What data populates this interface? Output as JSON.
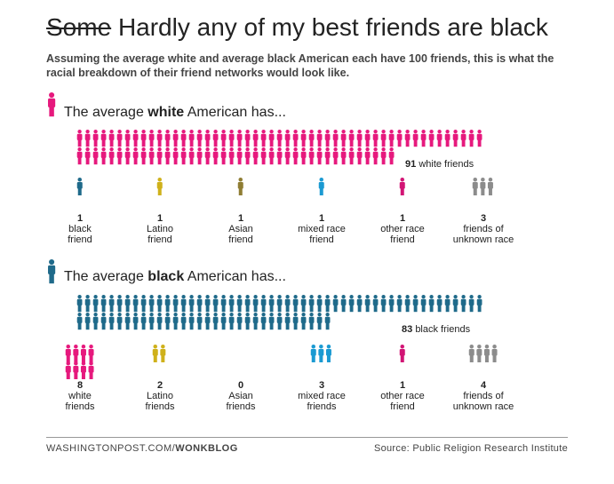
{
  "title": {
    "struck": "Some",
    "rest": "Hardly any of my best friends are black"
  },
  "subtitle": "Assuming the average white and average black American each have 100 friends, this is what the racial breakdown of their friend networks would look like.",
  "colors": {
    "white": "#e6197d",
    "black": "#1f6a8a",
    "latino": "#cfb11b",
    "asian": "#8f7d33",
    "mixed": "#1b9ad2",
    "other": "#d21575",
    "unknown": "#8c8c8c"
  },
  "chart_data": [
    {
      "type": "pictogram",
      "heading_pre": "The average",
      "heading_bold": "white",
      "heading_post": "American has...",
      "unit": "1 icon = 1 friend",
      "main": {
        "value": 91,
        "label": "white friends",
        "color_key": "white"
      },
      "groups": [
        {
          "value": 1,
          "line1": "black",
          "line2": "friend",
          "color_key": "black"
        },
        {
          "value": 1,
          "line1": "Latino",
          "line2": "friend",
          "color_key": "latino"
        },
        {
          "value": 1,
          "line1": "Asian",
          "line2": "friend",
          "color_key": "asian"
        },
        {
          "value": 1,
          "line1": "mixed race",
          "line2": "friend",
          "color_key": "mixed"
        },
        {
          "value": 1,
          "line1": "other race",
          "line2": "friend",
          "color_key": "other"
        },
        {
          "value": 3,
          "line1": "friends of",
          "line2": "unknown race",
          "color_key": "unknown"
        }
      ]
    },
    {
      "type": "pictogram",
      "heading_pre": "The average",
      "heading_bold": "black",
      "heading_post": "American has...",
      "unit": "1 icon = 1 friend",
      "main": {
        "value": 83,
        "label": "black friends",
        "color_key": "black"
      },
      "groups": [
        {
          "value": 8,
          "line1": "white",
          "line2": "friends",
          "color_key": "white"
        },
        {
          "value": 2,
          "line1": "Latino",
          "line2": "friends",
          "color_key": "latino"
        },
        {
          "value": 0,
          "line1": "Asian",
          "line2": "friends",
          "color_key": "asian"
        },
        {
          "value": 3,
          "line1": "mixed race",
          "line2": "friends",
          "color_key": "mixed"
        },
        {
          "value": 1,
          "line1": "other race",
          "line2": "friend",
          "color_key": "other"
        },
        {
          "value": 4,
          "line1": "friends of",
          "line2": "unknown race",
          "color_key": "unknown"
        }
      ]
    }
  ],
  "footer": {
    "site": "WASHINGTONPOST.COM/",
    "brand": "WONKBLOG",
    "source": "Source: Public Religion Research Institute"
  }
}
